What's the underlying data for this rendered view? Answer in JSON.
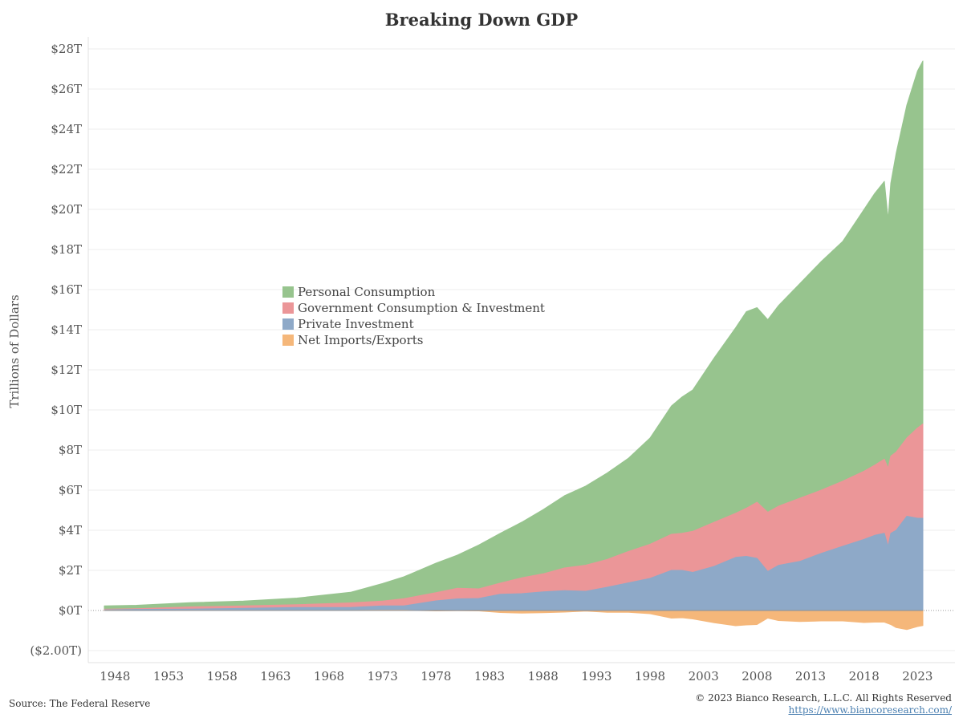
{
  "chart_data": {
    "type": "area",
    "title": "Breaking Down GDP",
    "ylabel": "Trillions of Dollars",
    "xlabel": "",
    "xlim": [
      1945.5,
      1926.5
    ],
    "ylim": [
      -2.6,
      28.6
    ],
    "x_ticks": [
      1948,
      1953,
      1958,
      1963,
      1968,
      1973,
      1978,
      1983,
      1988,
      1993,
      1998,
      2003,
      2008,
      2013,
      2018,
      2023
    ],
    "x_tick_labels": [
      "1948",
      "1953",
      "1958",
      "1963",
      "1968",
      "1973",
      "1978",
      "1983",
      "1988",
      "1993",
      "1998",
      "2003",
      "2008",
      "2013",
      "2018",
      "2023"
    ],
    "y_ticks": [
      -2,
      0,
      2,
      4,
      6,
      8,
      10,
      12,
      14,
      16,
      18,
      20,
      22,
      24,
      26,
      28
    ],
    "y_tick_labels": [
      "($2.00T)",
      "$0T",
      "$2T",
      "$4T",
      "$6T",
      "$8T",
      "$10T",
      "$12T",
      "$14T",
      "$16T",
      "$18T",
      "$20T",
      "$22T",
      "$24T",
      "$26T",
      "$28T"
    ],
    "grid": true,
    "legend_position": "center-left",
    "x": [
      1947,
      1950,
      1955,
      1960,
      1965,
      1970,
      1973,
      1975,
      1978,
      1980,
      1982,
      1984,
      1986,
      1988,
      1990,
      1992,
      1994,
      1996,
      1998,
      2000,
      2001,
      2002,
      2004,
      2006,
      2007,
      2008,
      2009,
      2010,
      2012,
      2014,
      2016,
      2018,
      2019,
      2019.9,
      2020.25,
      2020.5,
      2021,
      2022,
      2023,
      2023.5
    ],
    "series": [
      {
        "name": "Personal Consumption",
        "color": "#97c48e",
        "values": [
          0.23,
          0.26,
          0.39,
          0.47,
          0.62,
          0.91,
          1.35,
          1.68,
          2.36,
          2.76,
          3.27,
          3.85,
          4.4,
          5.03,
          5.72,
          6.21,
          6.86,
          7.6,
          8.6,
          10.2,
          10.65,
          11.0,
          12.6,
          14.1,
          14.9,
          15.1,
          14.5,
          15.2,
          16.3,
          17.4,
          18.4,
          20.0,
          20.8,
          21.4,
          19.5,
          21.3,
          22.8,
          25.2,
          26.9,
          27.4
        ]
      },
      {
        "name": "Government Consumption & Investment",
        "color": "#eb9698",
        "values": [
          0.063,
          0.092,
          0.18,
          0.23,
          0.29,
          0.38,
          0.47,
          0.59,
          0.89,
          1.11,
          1.08,
          1.37,
          1.63,
          1.83,
          2.12,
          2.26,
          2.55,
          2.95,
          3.3,
          3.8,
          3.85,
          3.95,
          4.4,
          4.85,
          5.1,
          5.4,
          4.9,
          5.2,
          5.6,
          6.0,
          6.45,
          6.95,
          7.25,
          7.55,
          7.1,
          7.7,
          7.9,
          8.6,
          9.1,
          9.3
        ]
      },
      {
        "name": "Private Investment",
        "color": "#8ea9c8",
        "values": [
          0.036,
          0.055,
          0.068,
          0.11,
          0.15,
          0.15,
          0.23,
          0.23,
          0.48,
          0.58,
          0.6,
          0.81,
          0.84,
          0.93,
          0.99,
          0.96,
          1.16,
          1.38,
          1.6,
          2.0,
          2.0,
          1.9,
          2.2,
          2.65,
          2.7,
          2.6,
          1.95,
          2.25,
          2.45,
          2.85,
          3.2,
          3.55,
          3.75,
          3.85,
          3.2,
          3.85,
          4.0,
          4.7,
          4.6,
          4.6
        ]
      },
      {
        "name": "Net Imports/Exports",
        "color": "#f5b77a",
        "values": [
          0.01,
          0.002,
          0.003,
          0.004,
          0.005,
          0.004,
          0.014,
          0.016,
          -0.02,
          -0.01,
          -0.02,
          -0.1,
          -0.13,
          -0.11,
          -0.08,
          -0.03,
          -0.09,
          -0.09,
          -0.16,
          -0.38,
          -0.36,
          -0.42,
          -0.61,
          -0.76,
          -0.72,
          -0.7,
          -0.38,
          -0.5,
          -0.55,
          -0.52,
          -0.52,
          -0.6,
          -0.58,
          -0.58,
          -0.65,
          -0.7,
          -0.85,
          -0.95,
          -0.8,
          -0.75
        ]
      }
    ]
  },
  "footer": {
    "source": "Source: The Federal Reserve",
    "copyright": "© 2023 Bianco Research, L.L.C. All Rights Reserved",
    "url": "https://www.biancoresearch.com/"
  }
}
